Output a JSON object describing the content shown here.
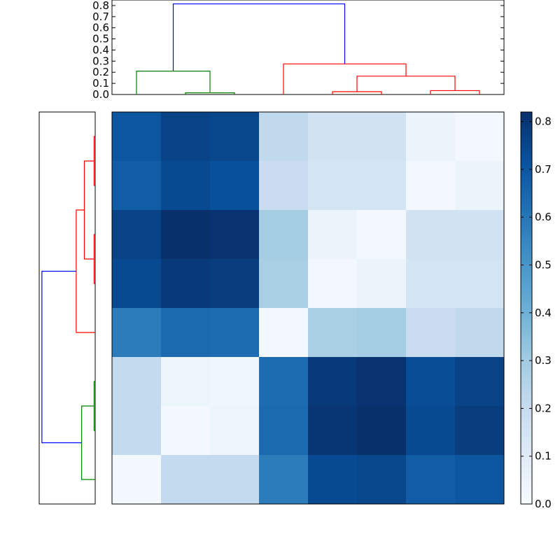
{
  "chart_data": [
    {
      "type": "dendrogram",
      "orientation": "top",
      "yticks": [
        "0.0",
        "0.1",
        "0.2",
        "0.3",
        "0.4",
        "0.5",
        "0.6",
        "0.7",
        "0.8"
      ],
      "ylim": [
        0,
        0.85
      ],
      "leaf_count": 8,
      "links": [
        {
          "a": 2,
          "b": 3,
          "h": 0.015,
          "ha": 0,
          "hb": 0,
          "color": "#008000"
        },
        {
          "a": 1,
          "b": 2.5,
          "h": 0.21,
          "ha": 0,
          "hb": 0.015,
          "color": "#008000"
        },
        {
          "a": 5,
          "b": 6,
          "h": 0.025,
          "ha": 0,
          "hb": 0,
          "color": "#ff0000"
        },
        {
          "a": 7,
          "b": 8,
          "h": 0.035,
          "ha": 0,
          "hb": 0,
          "color": "#ff0000"
        },
        {
          "a": 5.5,
          "b": 7.5,
          "h": 0.165,
          "ha": 0.025,
          "hb": 0.035,
          "color": "#ff0000"
        },
        {
          "a": 4,
          "b": 6.5,
          "h": 0.275,
          "ha": 0,
          "hb": 0.165,
          "color": "#ff0000"
        },
        {
          "a": 1.75,
          "b": 5.25,
          "h": 0.815,
          "ha": 0.21,
          "hb": 0.275,
          "color": "#0000ff"
        }
      ]
    },
    {
      "type": "dendrogram",
      "orientation": "left",
      "leaf_count": 8,
      "links": [
        {
          "a": 1,
          "b": 2,
          "h": 0.012,
          "ha": 0,
          "hb": 0,
          "color": "#ff0000"
        },
        {
          "a": 3,
          "b": 4,
          "h": 0.012,
          "ha": 0,
          "hb": 0,
          "color": "#ff0000"
        },
        {
          "a": 1.5,
          "b": 3.5,
          "h": 0.12,
          "ha": 0.012,
          "hb": 0.012,
          "color": "#ff0000"
        },
        {
          "a": 2.5,
          "b": 5,
          "h": 0.21,
          "ha": 0.12,
          "hb": 0,
          "color": "#ff0000"
        },
        {
          "a": 6,
          "b": 7,
          "h": 0.012,
          "ha": 0,
          "hb": 0,
          "color": "#008000"
        },
        {
          "a": 6.5,
          "b": 8,
          "h": 0.15,
          "ha": 0.012,
          "hb": 0,
          "color": "#008000"
        },
        {
          "a": 3.75,
          "b": 7.25,
          "h": 0.59,
          "ha": 0.21,
          "hb": 0.15,
          "color": "#0000ff"
        }
      ],
      "hmax": 0.62
    },
    {
      "type": "heatmap",
      "colormap": "Blues",
      "vmin": 0,
      "vmax": 0.82,
      "colorbar_ticks": [
        "0.0",
        "0.1",
        "0.2",
        "0.3",
        "0.4",
        "0.5",
        "0.6",
        "0.7",
        "0.8"
      ],
      "values": [
        [
          0.7,
          0.76,
          0.75,
          0.22,
          0.16,
          0.16,
          0.05,
          0.02
        ],
        [
          0.68,
          0.74,
          0.72,
          0.19,
          0.15,
          0.15,
          0.02,
          0.05
        ],
        [
          0.76,
          0.82,
          0.81,
          0.29,
          0.05,
          0.02,
          0.16,
          0.16
        ],
        [
          0.74,
          0.79,
          0.78,
          0.28,
          0.02,
          0.05,
          0.15,
          0.15
        ],
        [
          0.58,
          0.64,
          0.63,
          0.02,
          0.28,
          0.29,
          0.19,
          0.22
        ],
        [
          0.21,
          0.04,
          0.03,
          0.63,
          0.79,
          0.81,
          0.73,
          0.76
        ],
        [
          0.21,
          0.02,
          0.04,
          0.64,
          0.8,
          0.82,
          0.74,
          0.78
        ],
        [
          0.02,
          0.21,
          0.21,
          0.58,
          0.74,
          0.75,
          0.68,
          0.7
        ]
      ]
    }
  ]
}
